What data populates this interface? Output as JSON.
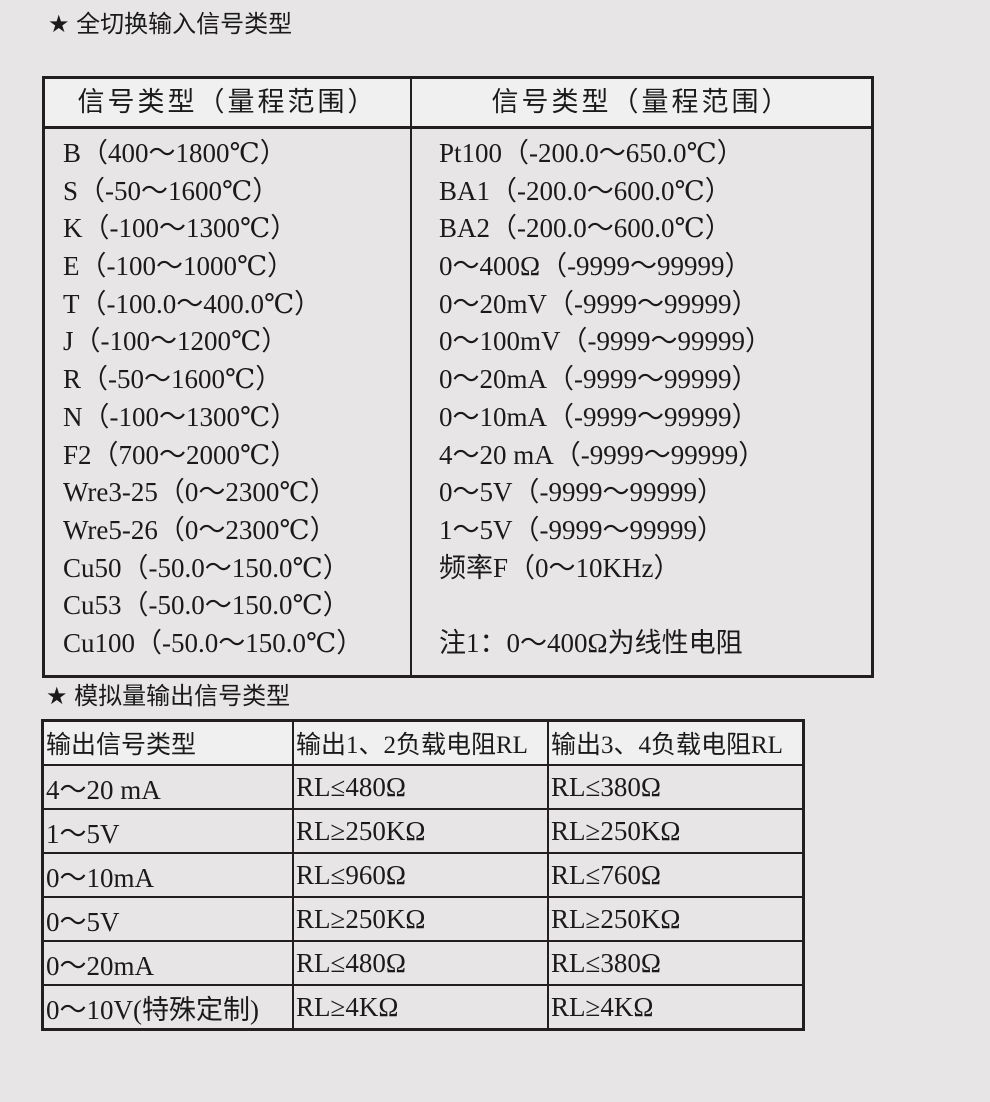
{
  "section1": {
    "title": "★ 全切换输入信号类型",
    "header": [
      "信号类型（量程范围）",
      "信号类型（量程范围）"
    ],
    "left": [
      "B（400～1800℃）",
      "S（-50～1600℃）",
      "K（-100～1300℃）",
      "E（-100～1000℃）",
      "T（-100.0～400.0℃）",
      "J（-100～1200℃）",
      "R（-50～1600℃）",
      "N（-100～1300℃）",
      "F2（700～2000℃）",
      "Wre3-25（0～2300℃）",
      "Wre5-26（0～2300℃）",
      "Cu50（-50.0～150.0℃）",
      "Cu53（-50.0～150.0℃）",
      "Cu100（-50.0～150.0℃）"
    ],
    "right": [
      "Pt100（-200.0～650.0℃）",
      "BA1（-200.0～600.0℃）",
      "BA2（-200.0～600.0℃）",
      "0～400Ω（-9999～99999）",
      "0～20mV（-9999～99999）",
      "0～100mV（-9999～99999）",
      "0～20mA（-9999～99999）",
      "0～10mA（-9999～99999）",
      "4～20 mA（-9999～99999）",
      "0～5V（-9999～99999）",
      "1～5V（-9999～99999）",
      "频率F（0～10KHz）",
      "",
      "注1：0～400Ω为线性电阻"
    ]
  },
  "section2": {
    "title": "★ 模拟量输出信号类型",
    "rows": [
      [
        "输出信号类型",
        "输出1、2负载电阻RL",
        "输出3、4负载电阻RL"
      ],
      [
        "4～20 mA",
        "RL≤480Ω",
        "RL≤380Ω"
      ],
      [
        "1～5V",
        "RL≥250KΩ",
        "RL≥250KΩ"
      ],
      [
        "0～10mA",
        "RL≤960Ω",
        "RL≤760Ω"
      ],
      [
        "0～5V",
        "RL≥250KΩ",
        "RL≥250KΩ"
      ],
      [
        "0～20mA",
        "RL≤480Ω",
        "RL≤380Ω"
      ],
      [
        "0～10V(特殊定制)",
        "RL≥4KΩ",
        "RL≥4KΩ"
      ]
    ]
  }
}
